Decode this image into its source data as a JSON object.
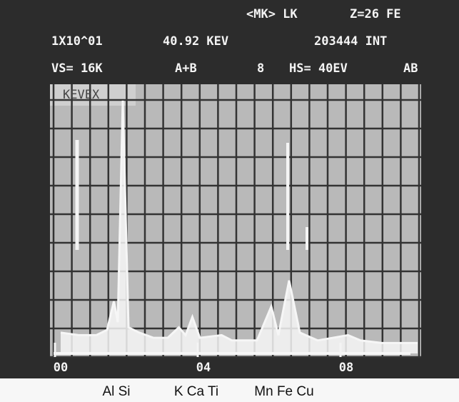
{
  "chart_data": {
    "type": "spectrum",
    "screen_text": [
      "<MK> LK",
      "Z=26 FE",
      "1X10^01",
      "40.92 KEV",
      "203444 INT",
      "VS= 16K",
      "A+B",
      "8",
      "HS= 40EV",
      "AB",
      "KEVEX"
    ],
    "x": [
      0,
      0.5,
      1.0,
      1.3,
      1.49,
      1.6,
      1.74,
      1.9,
      2.2,
      2.6,
      3.0,
      3.31,
      3.5,
      3.69,
      3.9,
      4.51,
      4.8,
      5.5,
      5.9,
      6.1,
      6.4,
      6.7,
      7.2,
      8.05,
      8.4,
      9,
      10
    ],
    "values": [
      8,
      7,
      7,
      9,
      20,
      12,
      97,
      10,
      8,
      6,
      6,
      10,
      7,
      14,
      6,
      7,
      5,
      5,
      18,
      7,
      28,
      8,
      5,
      7,
      5,
      4,
      4
    ],
    "color": "#f6f6f6",
    "xlim": [
      -0.2,
      10
    ],
    "ylim": [
      0,
      100
    ],
    "xticks": [
      {
        "value": 0,
        "label": "00"
      },
      {
        "value": 4,
        "label": "04"
      },
      {
        "value": 8,
        "label": "08"
      }
    ],
    "element_labels": [
      "Al Si",
      "K Ca Ti",
      "Mn Fe Cu"
    ]
  }
}
